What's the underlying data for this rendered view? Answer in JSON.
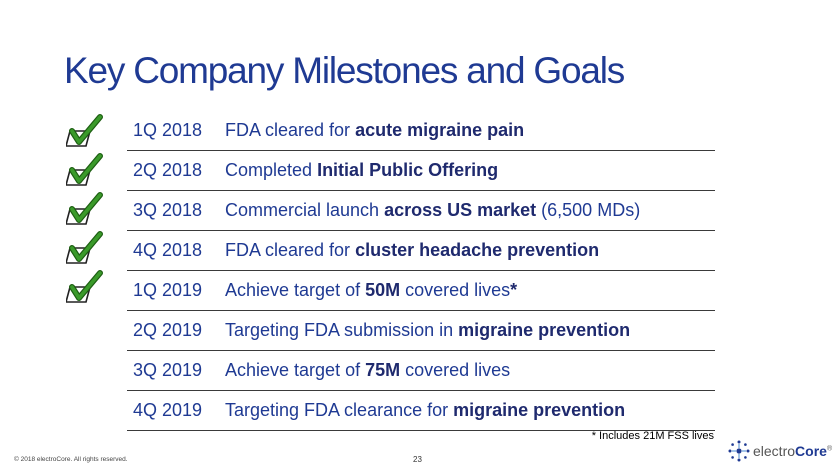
{
  "title": "Key Company Milestones and Goals",
  "milestones": [
    {
      "date": "1Q 2018",
      "parts": [
        {
          "t": "FDA cleared for ",
          "b": false
        },
        {
          "t": "acute migraine pain",
          "b": true
        }
      ],
      "done": true
    },
    {
      "date": "2Q 2018",
      "parts": [
        {
          "t": "Completed ",
          "b": false
        },
        {
          "t": "Initial Public Offering",
          "b": true
        }
      ],
      "done": true
    },
    {
      "date": "3Q 2018",
      "parts": [
        {
          "t": "Commercial launch ",
          "b": false
        },
        {
          "t": "across US market",
          "b": true
        },
        {
          "t": " (6,500 MDs)",
          "b": false
        }
      ],
      "done": true
    },
    {
      "date": "4Q 2018",
      "parts": [
        {
          "t": "FDA cleared for ",
          "b": false
        },
        {
          "t": "cluster headache prevention",
          "b": true
        }
      ],
      "done": true
    },
    {
      "date": "1Q 2019",
      "parts": [
        {
          "t": "Achieve target of ",
          "b": false
        },
        {
          "t": "50M",
          "b": true
        },
        {
          "t": " covered lives",
          "b": false
        },
        {
          "t": "*",
          "b": true
        }
      ],
      "done": true
    },
    {
      "date": "2Q 2019",
      "parts": [
        {
          "t": "Targeting FDA submission in ",
          "b": false
        },
        {
          "t": "migraine prevention",
          "b": true
        }
      ],
      "done": false
    },
    {
      "date": "3Q 2019",
      "parts": [
        {
          "t": "Achieve target of ",
          "b": false
        },
        {
          "t": "75M",
          "b": true
        },
        {
          "t": " covered lives",
          "b": false
        }
      ],
      "done": false
    },
    {
      "date": "4Q 2019",
      "parts": [
        {
          "t": "Targeting FDA clearance for ",
          "b": false
        },
        {
          "t": "migraine prevention",
          "b": true
        }
      ],
      "done": false
    }
  ],
  "footnote": "* Includes 21M FSS lives",
  "copyright": "© 2018 electroCore. All rights reserved.",
  "page_number": "23",
  "logo": {
    "prefix": "electro",
    "suffix": "Core",
    "suffix_mark": "®"
  },
  "colors": {
    "title": "#1f3a93",
    "text": "#1f3a93",
    "check": "#3a9a2a"
  },
  "icons": {
    "check": "checkmark-box-icon",
    "logo": "electrocore-star-icon"
  }
}
